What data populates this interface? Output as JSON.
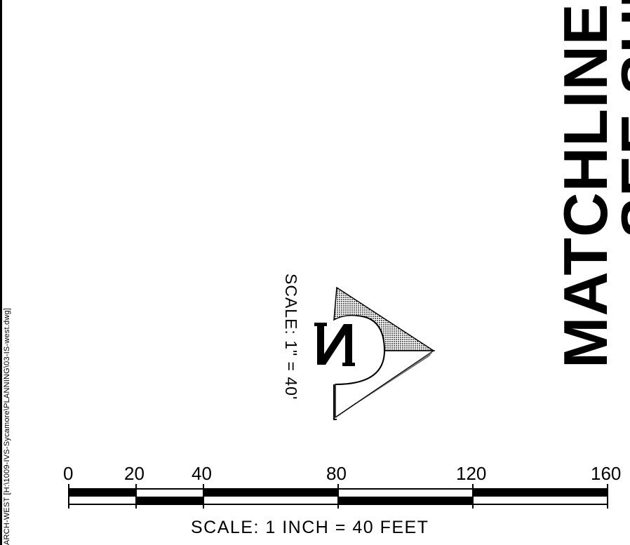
{
  "sheet": {
    "file_path": "ARCH-WEST [H:\\1009-IVS-Sycamore\\PLANNING\\03-IS-west.dwg]",
    "matchline_text": "MATCHLINE S",
    "see_sheet_text": "SEE SHE",
    "north_arrow_scale": "SCALE: 1\" = 40'",
    "north_letter": "N"
  },
  "scale_bar": {
    "ticks": [
      "0",
      "20",
      "40",
      "80",
      "120",
      "160"
    ],
    "label": "SCALE: 1 INCH = 40 FEET"
  },
  "colors": {
    "ink": "#000000",
    "paper": "#ffffff"
  }
}
